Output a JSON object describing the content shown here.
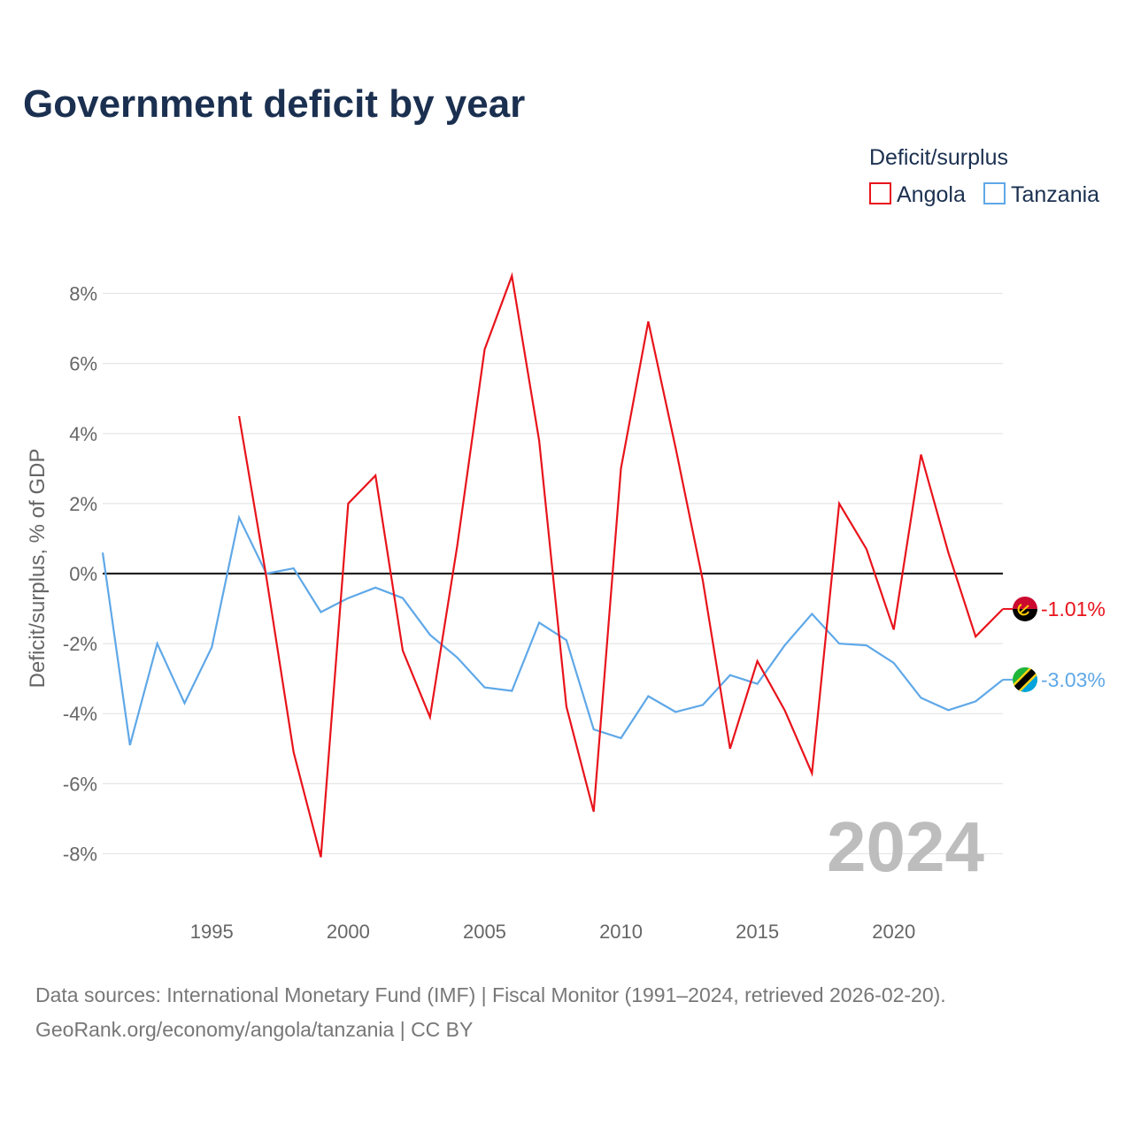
{
  "chart_data": {
    "type": "line",
    "title": "Government deficit by year",
    "ylabel": "Deficit/surplus, % of GDP",
    "xlabel": "",
    "xlim": [
      1991,
      2024
    ],
    "ylim": [
      -9.1,
      9.1
    ],
    "x_ticks": [
      1995,
      2000,
      2005,
      2010,
      2015,
      2020
    ],
    "y_ticks": [
      -8,
      -6,
      -4,
      -2,
      0,
      2,
      4,
      6,
      8
    ],
    "y_tick_labels": [
      "-8%",
      "-6%",
      "-4%",
      "-2%",
      "0%",
      "2%",
      "4%",
      "6%",
      "8%"
    ],
    "x_tick_labels": [
      "1995",
      "2000",
      "2005",
      "2010",
      "2015",
      "2020"
    ],
    "legend_title": "Deficit/surplus",
    "legend_position": "top-right",
    "year_label": "2024",
    "series": [
      {
        "name": "Angola",
        "color": "#e8131b",
        "end_label": "-1.01%",
        "flag_icon": "angola-flag-icon",
        "x": [
          1996,
          1997,
          1998,
          1999,
          2000,
          2001,
          2002,
          2003,
          2004,
          2005,
          2006,
          2007,
          2008,
          2009,
          2010,
          2011,
          2012,
          2013,
          2014,
          2015,
          2016,
          2017,
          2018,
          2019,
          2020,
          2021,
          2022,
          2023,
          2024
        ],
        "values": [
          4.5,
          -0.1,
          -5.1,
          -8.1,
          2.0,
          2.8,
          -2.2,
          -4.1,
          0.8,
          6.4,
          8.5,
          3.8,
          -3.8,
          -6.8,
          3.0,
          7.2,
          3.6,
          -0.2,
          -5.0,
          -2.5,
          -3.9,
          -5.7,
          2.0,
          0.7,
          -1.6,
          3.4,
          0.6,
          -1.8,
          -1.01
        ]
      },
      {
        "name": "Tanzania",
        "color": "#5fa8e8",
        "end_label": "-3.03%",
        "flag_icon": "tanzania-flag-icon",
        "x": [
          1991,
          1992,
          1993,
          1994,
          1995,
          1996,
          1997,
          1998,
          1999,
          2000,
          2001,
          2002,
          2003,
          2004,
          2005,
          2006,
          2007,
          2008,
          2009,
          2010,
          2011,
          2012,
          2013,
          2014,
          2015,
          2016,
          2017,
          2018,
          2019,
          2020,
          2021,
          2022,
          2023,
          2024
        ],
        "values": [
          0.6,
          -4.9,
          -2.0,
          -3.7,
          -2.1,
          1.6,
          0.0,
          0.15,
          -1.1,
          -0.7,
          -0.4,
          -0.7,
          -1.75,
          -2.4,
          -3.25,
          -3.35,
          -1.4,
          -1.9,
          -4.45,
          -4.7,
          -3.5,
          -3.95,
          -3.75,
          -2.9,
          -3.15,
          -2.05,
          -1.15,
          -2.0,
          -2.05,
          -2.55,
          -3.55,
          -3.9,
          -3.65,
          -3.03
        ]
      }
    ]
  },
  "footer": {
    "source_line": "Data sources: International Monetary Fund (IMF) | Fiscal Monitor (1991–2024, retrieved 2026-02-20).",
    "url_line": "GeoRank.org/economy/angola/tanzania | CC BY"
  }
}
